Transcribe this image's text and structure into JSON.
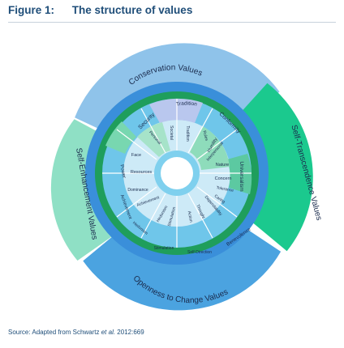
{
  "figure": {
    "number": "Figure 1:",
    "title": "The structure of values"
  },
  "colors": {
    "conservation_band": "#8fc3ea",
    "self_transcendence_band": "#1bc98e",
    "openness_band": "#4ba3e0",
    "self_enhancement_band": "#8fe0c5",
    "outer_ring": "#3a8fda",
    "green_ring": "#1f9e5c",
    "inner_fill": "#cdeaf7",
    "hub": "#ffffff"
  },
  "higher_order": {
    "conservation": "Conservation Values",
    "self_transcendence": "Self-Transcendence Values",
    "openness": "Openness to Change Values",
    "self_enhancement": "Self-Enhancement Values"
  },
  "middle_ring": {
    "tradition": "Tradition",
    "conformity": "Conformity",
    "security": "Security",
    "universalism": "Universalism",
    "benevolence": "Benevolence",
    "self_direction": "Self-Direction",
    "stimulation": "Stimulation",
    "hedonism": "Hedonism",
    "achievement": "Achievement",
    "power": "Power"
  },
  "inner_ring": {
    "humility": "Humility",
    "tradition": "Tradition",
    "rules": "Rules",
    "interpersonal": "Interpersonal",
    "societal": "Societal",
    "personal": "Personal",
    "face": "Face",
    "resources": "Resources",
    "dominance": "Dominance",
    "achievement": "Achievement",
    "hedonism": "Hedonism",
    "stimulation": "Stimulation",
    "action": "Action",
    "thought": "Thought",
    "dependability": "Dependability",
    "caring": "Caring",
    "tolerance": "Tolerance",
    "concern": "Concern",
    "nature": "Nature"
  },
  "source": {
    "prefix": "Source: Adapted from Schwartz ",
    "etal": "et al.",
    "suffix": " 2012:669"
  }
}
